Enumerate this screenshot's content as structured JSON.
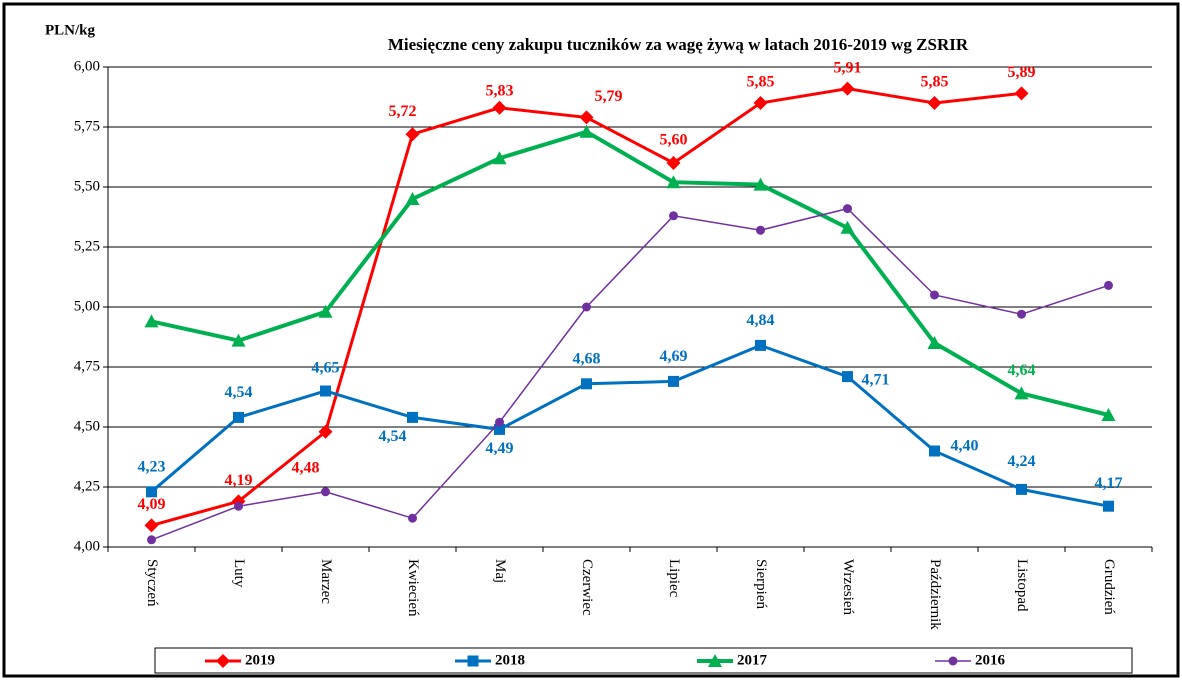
{
  "chart_data": {
    "type": "line",
    "title": "Miesięczne ceny zakupu tuczników za wagę żywą w latach 2016-2019  wg ZSRIR",
    "y_label": "PLN/kg",
    "categories": [
      "Styczeń",
      "Luty",
      "Marzec",
      "Kwiecień",
      "Maj",
      "Czerwiec",
      "Lipiec",
      "Sierpień",
      "Wrzesień",
      "Październik",
      "Listopad",
      "Grudzień"
    ],
    "ylim": [
      4,
      6
    ],
    "yticks": [
      {
        "value": 4,
        "label": "4,00"
      },
      {
        "value": 4.25,
        "label": "4,25"
      },
      {
        "value": 4.5,
        "label": "4,50"
      },
      {
        "value": 4.75,
        "label": "4,75"
      },
      {
        "value": 5,
        "label": "5,00"
      },
      {
        "value": 5.25,
        "label": "5,25"
      },
      {
        "value": 5.5,
        "label": "5,50"
      },
      {
        "value": 5.75,
        "label": "5,75"
      },
      {
        "value": 6,
        "label": "6,00"
      }
    ],
    "grid": true,
    "legend": "bottom",
    "series": [
      {
        "name": "2019",
        "color": "#ff0000",
        "marker": "diamond",
        "values": [
          4.09,
          4.19,
          4.48,
          5.72,
          5.83,
          5.79,
          5.6,
          5.85,
          5.91,
          5.85,
          5.89,
          null
        ],
        "value_labels": [
          "4,09",
          "4,19",
          "4,48",
          "5,72",
          "5,83",
          "5,79",
          "5,60",
          "5,85",
          "5,91",
          "5,85",
          "5,89",
          null
        ]
      },
      {
        "name": "2018",
        "color": "#0070c0",
        "marker": "square",
        "values": [
          4.23,
          4.54,
          4.65,
          4.54,
          4.49,
          4.68,
          4.69,
          4.84,
          4.71,
          4.4,
          4.24,
          4.17
        ],
        "value_labels": [
          "4,23",
          "4,54",
          "4,65",
          "4,54",
          "4,49",
          "4,68",
          "4,69",
          "4,84",
          "4,71",
          "4,40",
          "4,24",
          "4,17"
        ]
      },
      {
        "name": "2017",
        "color": "#00b050",
        "marker": "triangle",
        "values": [
          4.94,
          4.86,
          4.98,
          5.45,
          5.62,
          5.73,
          5.52,
          5.51,
          5.33,
          4.85,
          4.64,
          4.55
        ],
        "value_labels": [
          null,
          null,
          null,
          null,
          null,
          null,
          null,
          null,
          null,
          null,
          "4,64",
          null
        ]
      },
      {
        "name": "2016",
        "color": "#7030a0",
        "marker": "circle",
        "values": [
          4.03,
          4.17,
          4.23,
          4.12,
          4.52,
          5.0,
          5.38,
          5.32,
          5.41,
          5.05,
          4.97,
          5.09
        ]
      }
    ]
  }
}
